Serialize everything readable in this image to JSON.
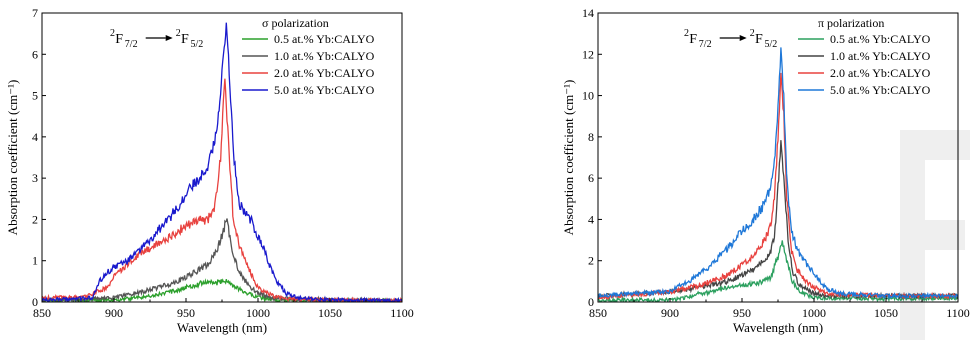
{
  "chart_data": [
    {
      "type": "line",
      "xlabel": "Wavelength (nm)",
      "ylabel": "Absorption coefficient (cm⁻¹)",
      "xlim": [
        850,
        1100
      ],
      "ylim": [
        0,
        7
      ],
      "xticks": [
        850,
        900,
        950,
        1000,
        1050,
        1100
      ],
      "yticks": [
        0,
        1,
        2,
        3,
        4,
        5,
        6,
        7
      ],
      "legend_title": "σ      polarization",
      "legend_position": "top-right",
      "series": [
        {
          "name": "0.5 at.% Yb:CALYO",
          "color": "#2ca02c",
          "x": [
            850,
            900,
            920,
            940,
            950,
            960,
            965,
            970,
            975,
            978,
            982,
            990,
            1000,
            1010,
            1050,
            1100
          ],
          "y": [
            0.03,
            0.05,
            0.12,
            0.25,
            0.35,
            0.45,
            0.5,
            0.45,
            0.5,
            0.52,
            0.4,
            0.25,
            0.12,
            0.05,
            0.03,
            0.02
          ]
        },
        {
          "name": "1.0 at.% Yb:CALYO",
          "color": "#555555",
          "x": [
            850,
            900,
            920,
            940,
            950,
            960,
            965,
            970,
            975,
            978,
            982,
            987,
            995,
            1000,
            1010,
            1050,
            1100
          ],
          "y": [
            0.05,
            0.1,
            0.25,
            0.45,
            0.6,
            0.8,
            0.9,
            1.15,
            1.6,
            2.0,
            1.3,
            0.7,
            0.35,
            0.22,
            0.1,
            0.05,
            0.03
          ]
        },
        {
          "name": "2.0 at.% Yb:CALYO",
          "color": "#e8423f",
          "x": [
            850,
            880,
            895,
            900,
            910,
            920,
            930,
            940,
            950,
            960,
            965,
            970,
            974,
            977,
            980,
            983,
            987,
            990,
            995,
            1000,
            1010,
            1020,
            1050,
            1100
          ],
          "y": [
            0.1,
            0.12,
            0.35,
            0.6,
            0.95,
            1.2,
            1.4,
            1.6,
            1.85,
            2.0,
            2.0,
            2.3,
            3.5,
            5.4,
            3.6,
            1.9,
            1.4,
            1.1,
            0.7,
            0.35,
            0.15,
            0.08,
            0.05,
            0.03
          ]
        },
        {
          "name": "5.0 at.% Yb:CALYO",
          "color": "#1a1acd",
          "x": [
            850,
            885,
            890,
            895,
            900,
            910,
            920,
            930,
            940,
            950,
            955,
            960,
            965,
            970,
            973,
            976,
            978,
            980,
            983,
            987,
            990,
            995,
            1000,
            1005,
            1010,
            1015,
            1020,
            1030,
            1050,
            1100
          ],
          "y": [
            0.05,
            0.1,
            0.5,
            0.7,
            0.85,
            1.0,
            1.3,
            1.7,
            2.1,
            2.6,
            2.85,
            3.0,
            3.3,
            3.9,
            4.7,
            6.0,
            6.7,
            5.6,
            3.6,
            2.4,
            2.2,
            2.0,
            1.6,
            1.2,
            0.7,
            0.4,
            0.2,
            0.08,
            0.05,
            0.03
          ]
        }
      ]
    },
    {
      "type": "line",
      "xlabel": "Wavelength (nm)",
      "ylabel": "Absorption coefficient  (cm⁻¹)",
      "xlim": [
        850,
        1100
      ],
      "ylim": [
        0,
        14
      ],
      "xticks": [
        850,
        900,
        950,
        1000,
        1050,
        1100
      ],
      "yticks": [
        0,
        2,
        4,
        6,
        8,
        10,
        12,
        14
      ],
      "legend_title": "π      polarization",
      "legend_position": "top-right",
      "series": [
        {
          "name": "0.5 at.% Yb:CALYO",
          "color": "#2ca05f",
          "x": [
            850,
            900,
            910,
            920,
            930,
            940,
            950,
            960,
            965,
            970,
            975,
            978,
            981,
            985,
            990,
            1000,
            1050,
            1100
          ],
          "y": [
            0.1,
            0.1,
            0.2,
            0.4,
            0.5,
            0.7,
            0.8,
            0.9,
            1.0,
            1.2,
            2.2,
            3.0,
            2.0,
            1.0,
            0.5,
            0.2,
            0.15,
            0.2
          ]
        },
        {
          "name": "1.0 at.% Yb:CALYO",
          "color": "#444444",
          "x": [
            850,
            900,
            920,
            940,
            950,
            960,
            965,
            970,
            973,
            975,
            977,
            979,
            982,
            985,
            990,
            1000,
            1010,
            1050,
            1100
          ],
          "y": [
            0.3,
            0.5,
            0.7,
            1.0,
            1.3,
            1.7,
            2.0,
            2.4,
            3.5,
            5.5,
            7.8,
            6.0,
            3.0,
            1.5,
            0.8,
            0.4,
            0.3,
            0.3,
            0.3
          ]
        },
        {
          "name": "2.0 at.% Yb:CALYO",
          "color": "#e8423f",
          "x": [
            850,
            900,
            920,
            940,
            950,
            960,
            965,
            970,
            973,
            975,
            977,
            979,
            981,
            984,
            988,
            993,
            1000,
            1010,
            1050,
            1100
          ],
          "y": [
            0.2,
            0.5,
            0.8,
            1.3,
            1.8,
            2.4,
            2.9,
            3.7,
            5.5,
            8.0,
            11.0,
            9.0,
            5.0,
            2.6,
            1.6,
            1.1,
            0.7,
            0.4,
            0.3,
            0.3
          ]
        },
        {
          "name": "5.0 at.% Yb:CALYO",
          "color": "#1f78d8",
          "x": [
            850,
            900,
            910,
            920,
            930,
            940,
            950,
            955,
            960,
            965,
            970,
            973,
            975,
            977,
            979,
            981,
            984,
            988,
            993,
            1000,
            1005,
            1010,
            1020,
            1050,
            1100
          ],
          "y": [
            0.3,
            0.5,
            0.9,
            1.3,
            1.9,
            2.6,
            3.4,
            3.8,
            4.2,
            4.7,
            5.6,
            7.0,
            9.5,
            12.2,
            10.0,
            6.0,
            3.6,
            2.6,
            2.0,
            1.4,
            0.9,
            0.6,
            0.4,
            0.3,
            0.3
          ]
        }
      ]
    }
  ]
}
